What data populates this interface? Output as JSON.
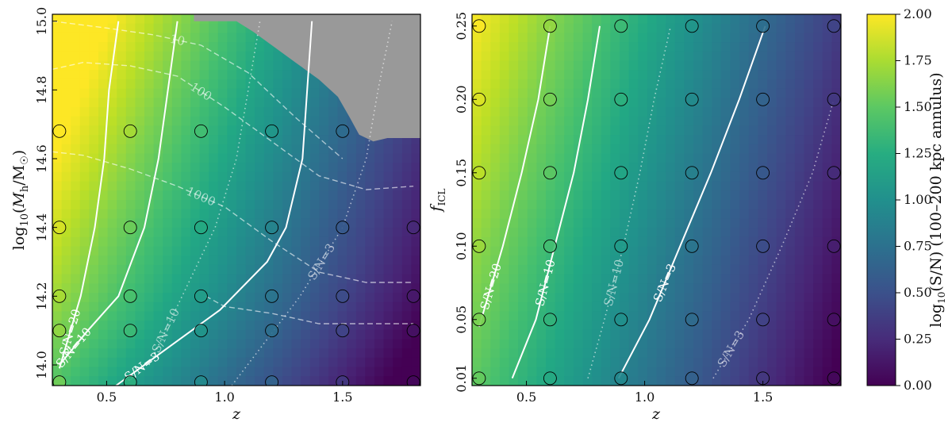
{
  "chart_data": [
    {
      "type": "heatmap",
      "panel": "left",
      "xlabel": "z",
      "ylabel": "log10(M_h/M_☉)",
      "xlim": [
        0.27,
        1.83
      ],
      "ylim": [
        13.94,
        15.02
      ],
      "xticks": [
        0.5,
        1.0,
        1.5
      ],
      "xtick_labels": [
        "0.5",
        "1.0",
        "1.5"
      ],
      "yticks": [
        14.0,
        14.2,
        14.4,
        14.6,
        14.8,
        15.0
      ],
      "ytick_labels": [
        "14.0",
        "14.2",
        "14.4",
        "14.6",
        "14.8",
        "15.0"
      ],
      "masked_region_color": "#999999",
      "points_x": [
        0.3,
        0.6,
        0.9,
        1.2,
        1.5,
        1.8
      ],
      "points_y": [
        13.95,
        14.1,
        14.2,
        14.4,
        14.68
      ],
      "solid_contours": [
        {
          "label": "S/N=20",
          "z_at_mass": [
            [
              13.99,
              0.3
            ],
            [
              14.2,
              0.39
            ],
            [
              14.4,
              0.45
            ],
            [
              14.6,
              0.49
            ],
            [
              14.8,
              0.51
            ],
            [
              15.0,
              0.55
            ]
          ]
        },
        {
          "label": "S/N=10",
          "z_at_mass": [
            [
              14.0,
              0.3
            ],
            [
              14.1,
              0.42
            ],
            [
              14.2,
              0.55
            ],
            [
              14.4,
              0.66
            ],
            [
              14.6,
              0.72
            ],
            [
              14.8,
              0.76
            ],
            [
              15.0,
              0.8
            ]
          ]
        },
        {
          "label": "S/N=3",
          "z_at_mass": [
            [
              13.94,
              0.54
            ],
            [
              14.05,
              0.76
            ],
            [
              14.16,
              0.98
            ],
            [
              14.3,
              1.18
            ],
            [
              14.4,
              1.26
            ],
            [
              14.6,
              1.33
            ],
            [
              14.8,
              1.35
            ],
            [
              15.0,
              1.37
            ]
          ]
        }
      ],
      "dotted_contours": [
        {
          "label": "S/N=10",
          "z_at_mass": [
            [
              14.0,
              0.68
            ],
            [
              14.2,
              0.82
            ],
            [
              14.4,
              0.96
            ],
            [
              14.6,
              1.05
            ],
            [
              14.8,
              1.1
            ],
            [
              15.0,
              1.15
            ]
          ]
        },
        {
          "label": "S/N=3",
          "z_at_mass": [
            [
              13.94,
              1.03
            ],
            [
              14.2,
              1.32
            ],
            [
              14.4,
              1.5
            ],
            [
              14.6,
              1.6
            ],
            [
              14.8,
              1.65
            ],
            [
              15.0,
              1.71
            ]
          ]
        }
      ],
      "dashed_contours": [
        {
          "label": "10",
          "mass_at_z": [
            [
              0.27,
              15.0
            ],
            [
              0.5,
              14.98
            ],
            [
              0.7,
              14.96
            ],
            [
              0.9,
              14.93
            ],
            [
              1.1,
              14.85
            ],
            [
              1.3,
              14.72
            ],
            [
              1.5,
              14.6
            ]
          ]
        },
        {
          "label": "100",
          "mass_at_z": [
            [
              0.27,
              14.86
            ],
            [
              0.4,
              14.88
            ],
            [
              0.6,
              14.87
            ],
            [
              0.8,
              14.84
            ],
            [
              1.0,
              14.75
            ],
            [
              1.2,
              14.65
            ],
            [
              1.4,
              14.55
            ],
            [
              1.6,
              14.51
            ],
            [
              1.8,
              14.52
            ]
          ]
        },
        {
          "label": "1000",
          "mass_at_z": [
            [
              0.27,
              14.62
            ],
            [
              0.4,
              14.61
            ],
            [
              0.6,
              14.57
            ],
            [
              0.8,
              14.52
            ],
            [
              1.0,
              14.46
            ],
            [
              1.2,
              14.36
            ],
            [
              1.4,
              14.27
            ],
            [
              1.6,
              14.24
            ],
            [
              1.8,
              14.24
            ]
          ]
        },
        {
          "label": "",
          "mass_at_z": [
            [
              0.92,
              14.2
            ],
            [
              1.0,
              14.17
            ],
            [
              1.2,
              14.15
            ],
            [
              1.4,
              14.12
            ],
            [
              1.6,
              14.12
            ],
            [
              1.8,
              14.12
            ]
          ]
        }
      ],
      "masked_boundary": [
        [
          0.87,
          15.02
        ],
        [
          0.87,
          15.0
        ],
        [
          1.05,
          15.0
        ],
        [
          1.12,
          14.97
        ],
        [
          1.2,
          14.93
        ],
        [
          1.3,
          14.88
        ],
        [
          1.4,
          14.83
        ],
        [
          1.48,
          14.78
        ],
        [
          1.53,
          14.72
        ],
        [
          1.57,
          14.67
        ],
        [
          1.63,
          14.65
        ],
        [
          1.69,
          14.66
        ],
        [
          1.75,
          14.66
        ],
        [
          1.83,
          14.66
        ],
        [
          1.83,
          15.02
        ]
      ]
    },
    {
      "type": "heatmap",
      "panel": "right",
      "xlabel": "z",
      "ylabel": "f_ICL",
      "xlim": [
        0.27,
        1.83
      ],
      "ylim": [
        0.005,
        0.258
      ],
      "xticks": [
        0.5,
        1.0,
        1.5
      ],
      "xtick_labels": [
        "0.5",
        "1.0",
        "1.5"
      ],
      "yticks": [
        0.01,
        0.05,
        0.1,
        0.15,
        0.2,
        0.25
      ],
      "ytick_labels": [
        "0.01",
        "0.05",
        "0.10",
        "0.15",
        "0.20",
        "0.25"
      ],
      "points_x": [
        0.3,
        0.6,
        0.9,
        1.2,
        1.5,
        1.8
      ],
      "points_y": [
        0.01,
        0.05,
        0.1,
        0.15,
        0.2,
        0.25
      ],
      "solid_contours": [
        {
          "label": "S/N=20",
          "z_at_f": [
            [
              0.045,
              0.3
            ],
            [
              0.1,
              0.4
            ],
            [
              0.15,
              0.48
            ],
            [
              0.2,
              0.55
            ],
            [
              0.25,
              0.6
            ]
          ]
        },
        {
          "label": "S/N=10",
          "z_at_f": [
            [
              0.01,
              0.44
            ],
            [
              0.05,
              0.54
            ],
            [
              0.1,
              0.62
            ],
            [
              0.15,
              0.7
            ],
            [
              0.2,
              0.76
            ],
            [
              0.25,
              0.81
            ]
          ]
        },
        {
          "label": "S/N=3",
          "z_at_f": [
            [
              0.01,
              0.89
            ],
            [
              0.05,
              1.02
            ],
            [
              0.1,
              1.15
            ],
            [
              0.15,
              1.28
            ],
            [
              0.2,
              1.4
            ],
            [
              0.25,
              1.51
            ]
          ]
        }
      ],
      "dotted_contours": [
        {
          "label": "S/N=10",
          "z_at_f": [
            [
              0.01,
              0.76
            ],
            [
              0.05,
              0.83
            ],
            [
              0.1,
              0.91
            ],
            [
              0.15,
              0.98
            ],
            [
              0.2,
              1.04
            ],
            [
              0.25,
              1.11
            ]
          ]
        },
        {
          "label": "S/N=3",
          "z_at_f": [
            [
              0.01,
              1.29
            ],
            [
              0.05,
              1.44
            ],
            [
              0.1,
              1.58
            ],
            [
              0.15,
              1.71
            ],
            [
              0.2,
              1.8
            ]
          ]
        }
      ]
    }
  ],
  "colorbar": {
    "label": "log10(S/N) (100–200 kpc annulus)",
    "range": [
      0.0,
      2.0
    ],
    "ticks": [
      "0.00",
      "0.25",
      "0.50",
      "0.75",
      "1.00",
      "1.25",
      "1.50",
      "1.75",
      "2.00"
    ],
    "colormap": "viridis"
  },
  "colors": {
    "contour": "#ffffff",
    "mask": "#999999",
    "frame": "#000000"
  }
}
